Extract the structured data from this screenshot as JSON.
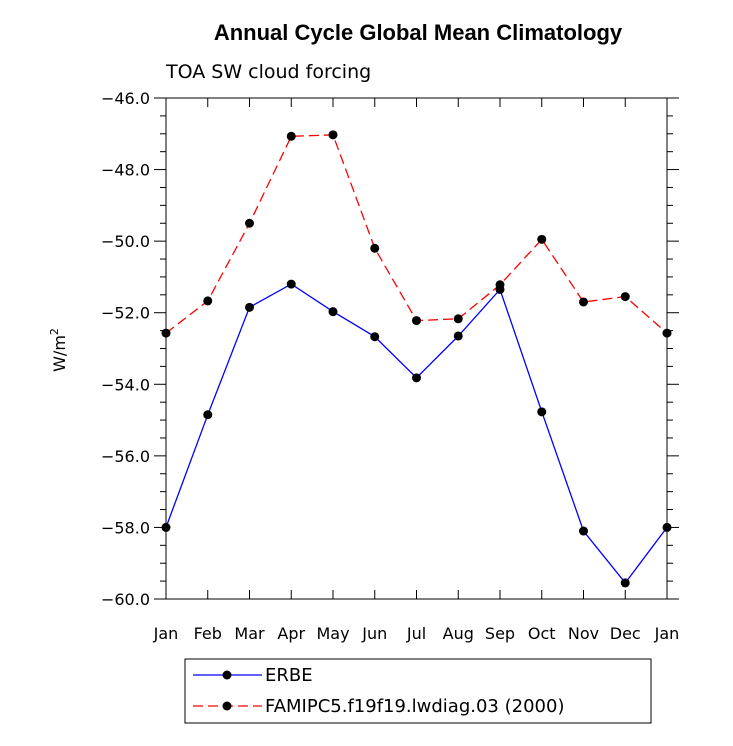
{
  "chart_data": {
    "type": "line",
    "title": "Annual Cycle Global Mean Climatology",
    "subtitle": "TOA SW cloud forcing",
    "ylabel": "W/m",
    "ylabel_superscript": "2",
    "xlabel": "",
    "categories": [
      "Jan",
      "Feb",
      "Mar",
      "Apr",
      "May",
      "Jun",
      "Jul",
      "Aug",
      "Sep",
      "Oct",
      "Nov",
      "Dec",
      "Jan"
    ],
    "ylim": [
      -60.0,
      -46.0
    ],
    "yticks": [
      -60.0,
      -58.0,
      -56.0,
      -54.0,
      -52.0,
      -50.0,
      -48.0,
      -46.0
    ],
    "ytick_labels": [
      "−60.0",
      "−58.0",
      "−56.0",
      "−54.0",
      "−52.0",
      "−50.0",
      "−48.0",
      "−46.0"
    ],
    "grid": false,
    "legend_position": "bottom",
    "series": [
      {
        "name": "ERBE",
        "color": "#0000ff",
        "dash": "solid",
        "marker": "circle",
        "values": [
          -58.0,
          -54.85,
          -51.85,
          -51.2,
          -51.97,
          -52.67,
          -53.82,
          -52.65,
          -51.35,
          -54.77,
          -58.1,
          -59.55,
          -58.0
        ]
      },
      {
        "name": "FAMIPC5.f19f19.lwdiag.03 (2000)",
        "color": "#ff0000",
        "dash": "dashed",
        "marker": "circle",
        "values": [
          -52.57,
          -51.67,
          -49.5,
          -47.07,
          -47.03,
          -50.2,
          -52.22,
          -52.17,
          -51.22,
          -49.95,
          -51.7,
          -51.55,
          -52.57
        ]
      }
    ]
  }
}
